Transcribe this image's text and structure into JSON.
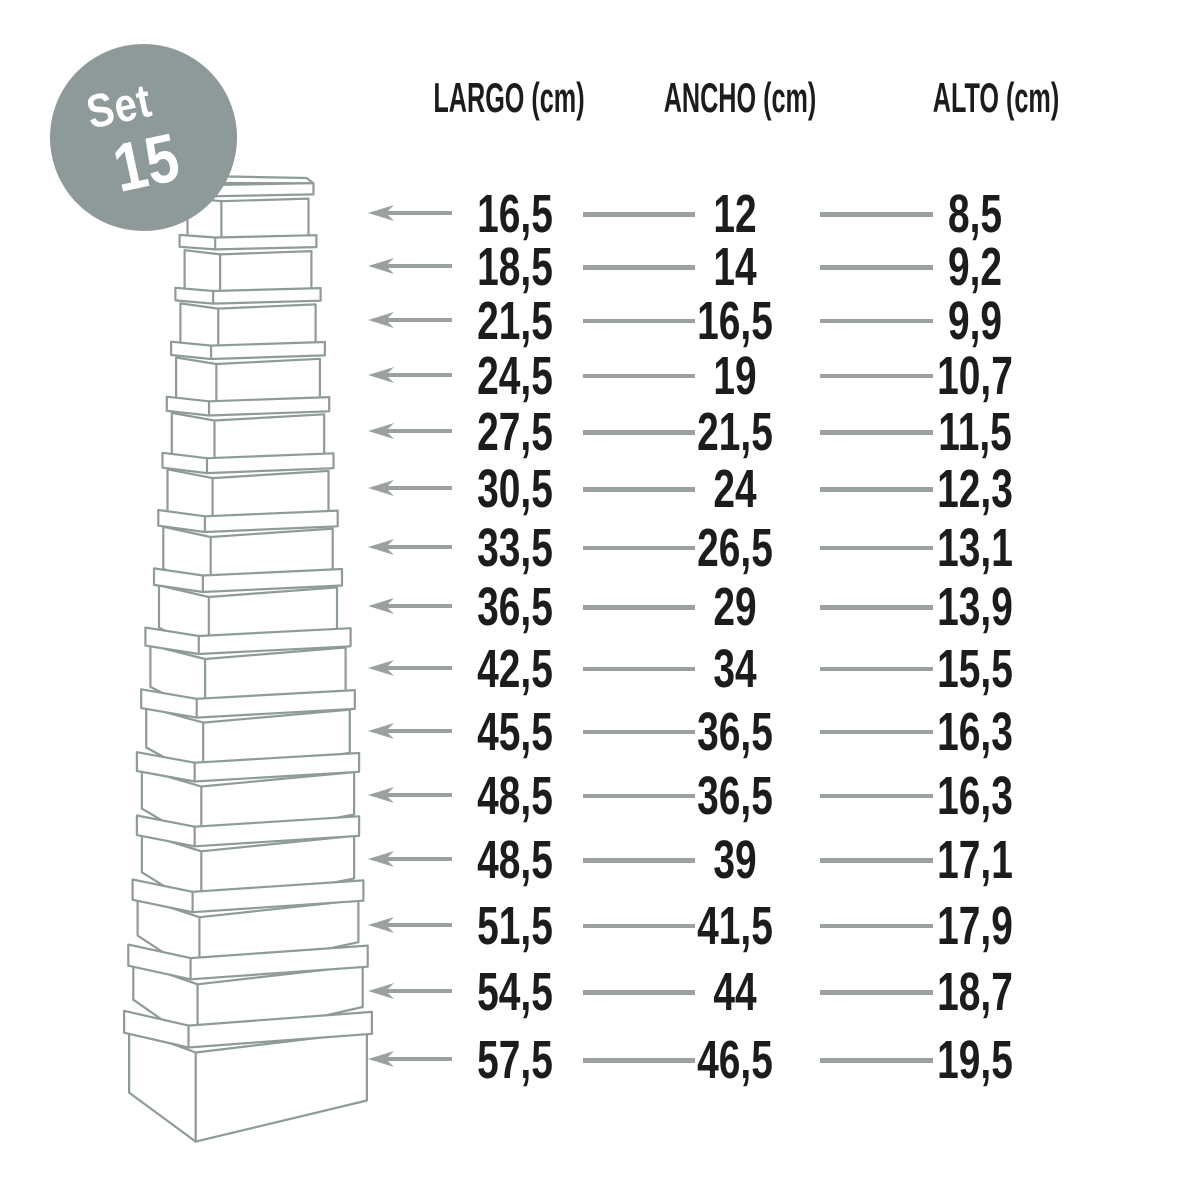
{
  "badge": {
    "line1": "Set",
    "line2": "15"
  },
  "table": {
    "headers": [
      {
        "label": "LARGO (cm)"
      },
      {
        "label": "ANCHO (cm)"
      },
      {
        "label": "ALTO (cm)"
      }
    ],
    "rows": [
      {
        "largo": "16,5",
        "ancho": "12",
        "alto": "8,5"
      },
      {
        "largo": "18,5",
        "ancho": "14",
        "alto": "9,2"
      },
      {
        "largo": "21,5",
        "ancho": "16,5",
        "alto": "9,9"
      },
      {
        "largo": "24,5",
        "ancho": "19",
        "alto": "10,7"
      },
      {
        "largo": "27,5",
        "ancho": "21,5",
        "alto": "11,5"
      },
      {
        "largo": "30,5",
        "ancho": "24",
        "alto": "12,3"
      },
      {
        "largo": "33,5",
        "ancho": "26,5",
        "alto": "13,1"
      },
      {
        "largo": "36,5",
        "ancho": "29",
        "alto": "13,9"
      },
      {
        "largo": "42,5",
        "ancho": "34",
        "alto": "15,5"
      },
      {
        "largo": "45,5",
        "ancho": "36,5",
        "alto": "16,3"
      },
      {
        "largo": "48,5",
        "ancho": "36,5",
        "alto": "16,3"
      },
      {
        "largo": "48,5",
        "ancho": "39",
        "alto": "17,1"
      },
      {
        "largo": "51,5",
        "ancho": "41,5",
        "alto": "17,9"
      },
      {
        "largo": "54,5",
        "ancho": "44",
        "alto": "18,7"
      },
      {
        "largo": "57,5",
        "ancho": "46,5",
        "alto": "19,5"
      }
    ]
  },
  "colors": {
    "badge": "#8e9a99",
    "badge_text": "#ffffff",
    "box_stroke": "#8f9b99",
    "line": "#9aa1a0",
    "text": "#1c1c1a",
    "background": "#ffffff"
  }
}
